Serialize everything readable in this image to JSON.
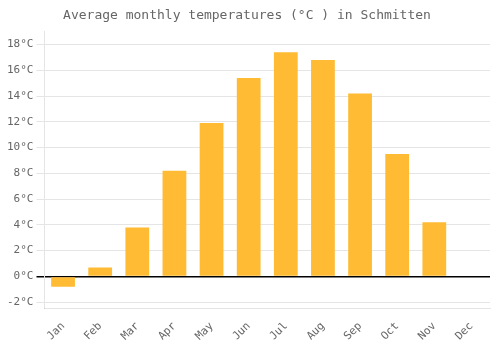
{
  "chart_data": {
    "type": "bar",
    "title": "Average monthly temperatures (°C ) in Schmitten",
    "categories": [
      "Jan",
      "Feb",
      "Mar",
      "Apr",
      "May",
      "Jun",
      "Jul",
      "Aug",
      "Sep",
      "Oct",
      "Nov",
      "Dec"
    ],
    "values": [
      -0.8,
      0.7,
      3.8,
      8.2,
      11.9,
      15.4,
      17.4,
      16.8,
      14.2,
      9.5,
      4.2,
      0.0
    ],
    "color": "#FFBB33",
    "ylim": [
      -2.5,
      19
    ],
    "yticks": [
      {
        "value": -2,
        "label": "-2°C"
      },
      {
        "value": 0,
        "label": "0°C"
      },
      {
        "value": 2,
        "label": "2°C"
      },
      {
        "value": 4,
        "label": "4°C"
      },
      {
        "value": 6,
        "label": "6°C"
      },
      {
        "value": 8,
        "label": "8°C"
      },
      {
        "value": 10,
        "label": "10°C"
      },
      {
        "value": 12,
        "label": "12°C"
      },
      {
        "value": 14,
        "label": "14°C"
      },
      {
        "value": 16,
        "label": "16°C"
      },
      {
        "value": 18,
        "label": "18°C"
      }
    ],
    "grid": true
  }
}
